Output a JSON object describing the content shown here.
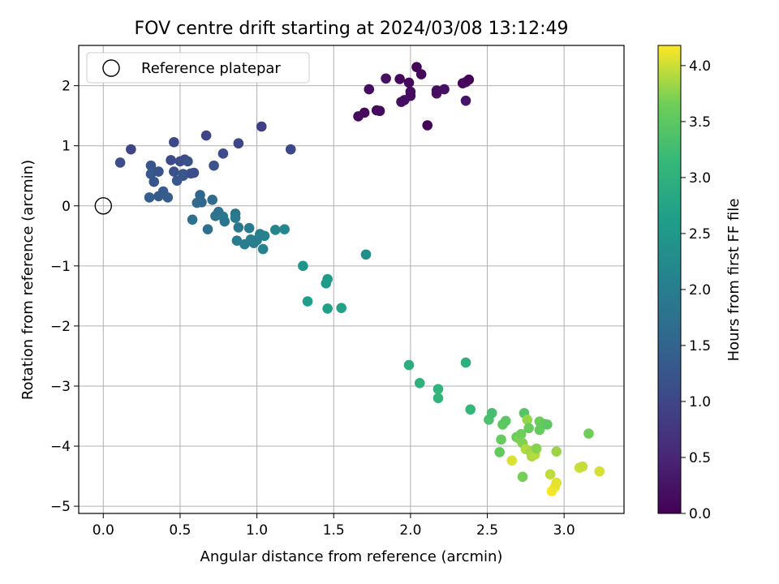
{
  "chart_data": {
    "type": "scatter",
    "title": "FOV centre drift starting at 2024/03/08 13:12:49",
    "xlabel": "Angular distance from reference (arcmin)",
    "ylabel": "Rotation from reference (arcmin)",
    "xlim": [
      -0.16,
      3.39
    ],
    "ylim": [
      -5.12,
      2.67
    ],
    "x_ticks": [
      0.0,
      0.5,
      1.0,
      1.5,
      2.0,
      2.5,
      3.0
    ],
    "x_tick_labels": [
      "0.0",
      "0.5",
      "1.0",
      "1.5",
      "2.0",
      "2.5",
      "3.0"
    ],
    "y_ticks": [
      -5,
      -4,
      -3,
      -2,
      -1,
      0,
      1,
      2
    ],
    "y_tick_labels": [
      "−5",
      "−4",
      "−3",
      "−2",
      "−1",
      "0",
      "1",
      "2"
    ],
    "grid": true,
    "legend": {
      "placement": "top-left",
      "entries": [
        "Reference platepar"
      ]
    },
    "reference_point": {
      "x": 0.0,
      "y": 0.0
    },
    "colorbar": {
      "label": "Hours from first FF file",
      "colormap": "viridis",
      "range": [
        0.0,
        4.18
      ],
      "ticks": [
        0.0,
        0.5,
        1.0,
        1.5,
        2.0,
        2.5,
        3.0,
        3.5,
        4.0
      ],
      "tick_labels": [
        "0.0",
        "0.5",
        "1.0",
        "1.5",
        "2.0",
        "2.5",
        "3.0",
        "3.5",
        "4.0"
      ]
    },
    "points": [
      {
        "x": 1.66,
        "y": 1.49,
        "c": 0.15
      },
      {
        "x": 1.7,
        "y": 1.55,
        "c": 0.12
      },
      {
        "x": 1.73,
        "y": 1.94,
        "c": 0.18
      },
      {
        "x": 1.78,
        "y": 1.59,
        "c": 0.1
      },
      {
        "x": 1.8,
        "y": 1.58,
        "c": 0.14
      },
      {
        "x": 1.84,
        "y": 2.12,
        "c": 0.2
      },
      {
        "x": 1.93,
        "y": 2.11,
        "c": 0.08
      },
      {
        "x": 1.94,
        "y": 1.73,
        "c": 0.22
      },
      {
        "x": 1.96,
        "y": 1.76,
        "c": 0.16
      },
      {
        "x": 1.99,
        "y": 2.05,
        "c": 0.11
      },
      {
        "x": 2.0,
        "y": 1.83,
        "c": 0.19
      },
      {
        "x": 2.0,
        "y": 1.9,
        "c": 0.13
      },
      {
        "x": 2.04,
        "y": 2.31,
        "c": 0.06
      },
      {
        "x": 2.07,
        "y": 2.19,
        "c": 0.09
      },
      {
        "x": 2.11,
        "y": 1.34,
        "c": 0.05
      },
      {
        "x": 2.17,
        "y": 1.87,
        "c": 0.24
      },
      {
        "x": 2.17,
        "y": 1.92,
        "c": 0.17
      },
      {
        "x": 2.22,
        "y": 1.94,
        "c": 0.21
      },
      {
        "x": 2.34,
        "y": 2.04,
        "c": 0.07
      },
      {
        "x": 2.36,
        "y": 1.75,
        "c": 0.26
      },
      {
        "x": 2.36,
        "y": 2.06,
        "c": 0.15
      },
      {
        "x": 2.38,
        "y": 2.1,
        "c": 0.04
      },
      {
        "x": 0.11,
        "y": 0.72,
        "c": 1.12
      },
      {
        "x": 0.18,
        "y": 0.94,
        "c": 0.98
      },
      {
        "x": 0.31,
        "y": 0.67,
        "c": 1.25
      },
      {
        "x": 0.31,
        "y": 0.53,
        "c": 1.31
      },
      {
        "x": 0.33,
        "y": 0.4,
        "c": 1.27
      },
      {
        "x": 0.36,
        "y": 0.57,
        "c": 1.22
      },
      {
        "x": 0.39,
        "y": 0.24,
        "c": 1.34
      },
      {
        "x": 0.42,
        "y": 0.14,
        "c": 1.38
      },
      {
        "x": 0.3,
        "y": 0.14,
        "c": 1.4
      },
      {
        "x": 0.36,
        "y": 0.16,
        "c": 1.36
      },
      {
        "x": 0.44,
        "y": 0.76,
        "c": 1.08
      },
      {
        "x": 0.46,
        "y": 1.06,
        "c": 1.02
      },
      {
        "x": 0.46,
        "y": 0.57,
        "c": 1.18
      },
      {
        "x": 0.48,
        "y": 0.42,
        "c": 1.28
      },
      {
        "x": 0.5,
        "y": 0.74,
        "c": 1.15
      },
      {
        "x": 0.52,
        "y": 0.53,
        "c": 1.24
      },
      {
        "x": 0.52,
        "y": 0.5,
        "c": 1.3
      },
      {
        "x": 0.53,
        "y": 0.77,
        "c": 1.05
      },
      {
        "x": 0.55,
        "y": 0.74,
        "c": 1.2
      },
      {
        "x": 0.57,
        "y": 0.54,
        "c": 1.17
      },
      {
        "x": 0.59,
        "y": 0.55,
        "c": 1.1
      },
      {
        "x": 0.67,
        "y": 1.17,
        "c": 0.95
      },
      {
        "x": 0.72,
        "y": 0.67,
        "c": 1.21
      },
      {
        "x": 0.78,
        "y": 0.87,
        "c": 1.09
      },
      {
        "x": 0.88,
        "y": 1.04,
        "c": 0.99
      },
      {
        "x": 1.03,
        "y": 1.32,
        "c": 0.92
      },
      {
        "x": 1.22,
        "y": 0.94,
        "c": 1.03
      },
      {
        "x": 0.58,
        "y": -0.23,
        "c": 1.72
      },
      {
        "x": 0.61,
        "y": 0.05,
        "c": 1.6
      },
      {
        "x": 0.63,
        "y": 0.18,
        "c": 1.55
      },
      {
        "x": 0.64,
        "y": 0.06,
        "c": 1.58
      },
      {
        "x": 0.68,
        "y": -0.39,
        "c": 1.7
      },
      {
        "x": 0.71,
        "y": 0.1,
        "c": 1.64
      },
      {
        "x": 0.73,
        "y": -0.17,
        "c": 1.8
      },
      {
        "x": 0.75,
        "y": -0.1,
        "c": 1.77
      },
      {
        "x": 0.78,
        "y": -0.18,
        "c": 1.86
      },
      {
        "x": 0.79,
        "y": -0.26,
        "c": 1.84
      },
      {
        "x": 0.86,
        "y": -0.13,
        "c": 1.79
      },
      {
        "x": 0.86,
        "y": -0.2,
        "c": 1.9
      },
      {
        "x": 0.87,
        "y": -0.58,
        "c": 1.95
      },
      {
        "x": 0.88,
        "y": -0.36,
        "c": 1.88
      },
      {
        "x": 0.92,
        "y": -0.64,
        "c": 1.98
      },
      {
        "x": 0.95,
        "y": -0.37,
        "c": 1.93
      },
      {
        "x": 0.96,
        "y": -0.56,
        "c": 2.01
      },
      {
        "x": 0.98,
        "y": -0.62,
        "c": 2.05
      },
      {
        "x": 1.0,
        "y": -0.57,
        "c": 1.97
      },
      {
        "x": 1.02,
        "y": -0.47,
        "c": 2.03
      },
      {
        "x": 1.04,
        "y": -0.72,
        "c": 2.08
      },
      {
        "x": 1.05,
        "y": -0.5,
        "c": 2.1
      },
      {
        "x": 1.12,
        "y": -0.4,
        "c": 2.14
      },
      {
        "x": 1.18,
        "y": -0.39,
        "c": 2.18
      },
      {
        "x": 1.3,
        "y": -1.0,
        "c": 2.45
      },
      {
        "x": 1.33,
        "y": -1.59,
        "c": 2.62
      },
      {
        "x": 1.45,
        "y": -1.29,
        "c": 2.5
      },
      {
        "x": 1.46,
        "y": -1.22,
        "c": 2.55
      },
      {
        "x": 1.46,
        "y": -1.71,
        "c": 2.65
      },
      {
        "x": 1.55,
        "y": -1.7,
        "c": 2.68
      },
      {
        "x": 1.71,
        "y": -0.81,
        "c": 2.3
      },
      {
        "x": 1.99,
        "y": -2.65,
        "c": 2.95
      },
      {
        "x": 2.06,
        "y": -2.95,
        "c": 3.0
      },
      {
        "x": 2.18,
        "y": -3.05,
        "c": 3.05
      },
      {
        "x": 2.18,
        "y": -3.2,
        "c": 3.08
      },
      {
        "x": 2.36,
        "y": -2.61,
        "c": 2.97
      },
      {
        "x": 2.39,
        "y": -3.39,
        "c": 3.12
      },
      {
        "x": 2.51,
        "y": -3.56,
        "c": 3.35
      },
      {
        "x": 2.53,
        "y": -3.45,
        "c": 3.3
      },
      {
        "x": 2.58,
        "y": -4.1,
        "c": 3.55
      },
      {
        "x": 2.59,
        "y": -3.89,
        "c": 3.58
      },
      {
        "x": 2.6,
        "y": -3.64,
        "c": 3.52
      },
      {
        "x": 2.62,
        "y": -3.58,
        "c": 3.48
      },
      {
        "x": 2.66,
        "y": -4.24,
        "c": 4.05
      },
      {
        "x": 2.69,
        "y": -3.85,
        "c": 3.62
      },
      {
        "x": 2.71,
        "y": -3.88,
        "c": 3.7
      },
      {
        "x": 2.72,
        "y": -3.8,
        "c": 3.65
      },
      {
        "x": 2.73,
        "y": -3.95,
        "c": 3.72
      },
      {
        "x": 2.73,
        "y": -4.51,
        "c": 3.68
      },
      {
        "x": 2.74,
        "y": -3.45,
        "c": 3.45
      },
      {
        "x": 2.75,
        "y": -4.05,
        "c": 3.9
      },
      {
        "x": 2.76,
        "y": -3.56,
        "c": 3.8
      },
      {
        "x": 2.77,
        "y": -3.7,
        "c": 3.6
      },
      {
        "x": 2.78,
        "y": -4.09,
        "c": 3.85
      },
      {
        "x": 2.79,
        "y": -4.17,
        "c": 3.88
      },
      {
        "x": 2.81,
        "y": -4.14,
        "c": 3.92
      },
      {
        "x": 2.82,
        "y": -4.04,
        "c": 3.75
      },
      {
        "x": 2.84,
        "y": -3.73,
        "c": 3.58
      },
      {
        "x": 2.84,
        "y": -3.59,
        "c": 3.62
      },
      {
        "x": 2.87,
        "y": -3.63,
        "c": 3.55
      },
      {
        "x": 2.89,
        "y": -3.64,
        "c": 3.5
      },
      {
        "x": 2.91,
        "y": -4.47,
        "c": 3.95
      },
      {
        "x": 2.92,
        "y": -4.75,
        "c": 4.15
      },
      {
        "x": 2.94,
        "y": -4.68,
        "c": 4.12
      },
      {
        "x": 2.95,
        "y": -4.61,
        "c": 4.08
      },
      {
        "x": 2.95,
        "y": -4.09,
        "c": 3.82
      },
      {
        "x": 3.1,
        "y": -4.36,
        "c": 4.0
      },
      {
        "x": 3.12,
        "y": -4.34,
        "c": 3.98
      },
      {
        "x": 3.16,
        "y": -3.79,
        "c": 3.66
      },
      {
        "x": 3.23,
        "y": -4.42,
        "c": 4.03
      }
    ]
  }
}
